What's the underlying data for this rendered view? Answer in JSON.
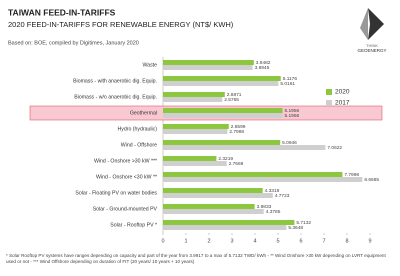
{
  "chart_data": {
    "type": "bar",
    "orientation": "horizontal",
    "title": "TAIWAN FEED-IN-TARIFFS",
    "subtitle": "2020 FEED-IN-TARIFFS FOR RENEWABLE ENERGY (NT$/ KWH)",
    "source": "Based on: BOE, compiled by Digitimes, January 2020",
    "categories": [
      "Waste",
      "Biomass - with anaerobic dig. Equip.",
      "Biomass - w/o anaerobic dig. Equip.",
      "Geothermal",
      "Hydro (hydraulic)",
      "Wind - Offshore",
      "Wind - Onshore >30 kW ***",
      "Wind - Onshore <30 kW **",
      "Solar - Floating PV on water bodies",
      "Solar - Ground-mounted PV",
      "Solar - Rooftop PV *"
    ],
    "series": [
      {
        "name": "2020",
        "color": "#8dc63f",
        "values": [
          3.9482,
          5.1176,
          2.6871,
          5.1956,
          2.8599,
          5.0946,
          2.3219,
          7.7998,
          4.3319,
          3.9833,
          5.7132
        ]
      },
      {
        "name": "2017",
        "color": "#cfcfcf",
        "values": [
          3.8945,
          5.0161,
          2.5765,
          5.1956,
          2.7988,
          7.0622,
          2.7669,
          8.6685,
          4.7723,
          4.3785,
          5.3648
        ]
      }
    ],
    "xlim": [
      0,
      9
    ],
    "xticks": [
      0,
      1,
      2,
      3,
      4,
      5,
      6,
      7,
      8,
      9
    ],
    "highlight_index": 3,
    "legend": "right",
    "footnote": "* Solar Rooftop PV systems have ranges depending on capacity and part of the year from 3.9917 to a max of 5.7132 TWD/ kWh - ** Wind Onshore >30 kW depending on LVRT equipment used or not - *** Wind Offshore depending on duration of FIT (20 years/ 10 years + 10 years)"
  },
  "logo": {
    "top": "THINK",
    "bottom": "GEOENERGY"
  }
}
